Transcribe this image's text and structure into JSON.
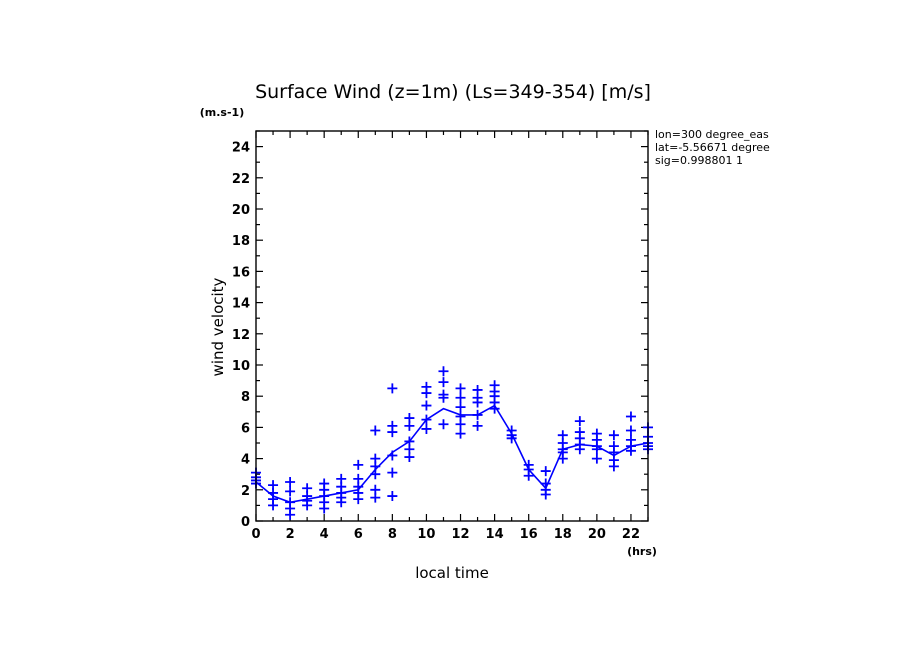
{
  "chart_data": {
    "type": "line",
    "title": "Surface Wind (z=1m) (Ls=349-354) [m/s]",
    "xlabel": "local time",
    "ylabel": "wind velocity",
    "x_unit": "(hrs)",
    "y_unit": "(m.s-1)",
    "xlim": [
      0,
      23
    ],
    "ylim": [
      0,
      25
    ],
    "x_ticks": [
      0,
      2,
      4,
      6,
      8,
      10,
      12,
      14,
      16,
      18,
      20,
      22
    ],
    "y_ticks": [
      0,
      2,
      4,
      6,
      8,
      10,
      12,
      14,
      16,
      18,
      20,
      22,
      24
    ],
    "grid": false,
    "info_lines": [
      "lon=300 degree_eas",
      "lat=-5.56671 degree",
      "sig=0.998801 1"
    ],
    "color": "#0000ff",
    "mean_line": {
      "x": [
        0,
        1,
        2,
        3,
        4,
        5,
        6,
        7,
        8,
        9,
        10,
        11,
        12,
        13,
        14,
        15,
        16,
        17,
        18,
        19,
        20,
        21,
        22,
        23
      ],
      "y": [
        2.5,
        1.6,
        1.2,
        1.4,
        1.6,
        1.8,
        2.0,
        3.3,
        4.4,
        5.1,
        6.5,
        7.2,
        6.8,
        6.8,
        7.4,
        5.6,
        3.3,
        2.1,
        4.6,
        4.9,
        4.8,
        4.2,
        4.8,
        5.0
      ]
    },
    "scatter": {
      "x": [
        0,
        0,
        0,
        0,
        1,
        1,
        1,
        1,
        2,
        2,
        2,
        2,
        2,
        3,
        3,
        3,
        3,
        4,
        4,
        4,
        4,
        4,
        5,
        5,
        5,
        5,
        5,
        6,
        6,
        6,
        6,
        6,
        7,
        7,
        7,
        7,
        7,
        7,
        8,
        8,
        8,
        8,
        8,
        8,
        9,
        9,
        9,
        9,
        9,
        10,
        10,
        10,
        10,
        10,
        11,
        11,
        11,
        11,
        11,
        12,
        12,
        12,
        12,
        12,
        12,
        13,
        13,
        13,
        13,
        13,
        14,
        14,
        14,
        14,
        14,
        15,
        15,
        15,
        16,
        16,
        16,
        17,
        17,
        17,
        17,
        18,
        18,
        18,
        18,
        18,
        19,
        19,
        19,
        19,
        19,
        20,
        20,
        20,
        20,
        20,
        21,
        21,
        21,
        21,
        21,
        22,
        22,
        22,
        22,
        22,
        23,
        23,
        23,
        23,
        23
      ],
      "y": [
        3.1,
        2.8,
        2.6,
        2.4,
        2.3,
        1.8,
        1.4,
        1.0,
        2.5,
        1.9,
        1.2,
        0.8,
        0.4,
        2.1,
        1.6,
        1.3,
        1.0,
        2.4,
        2.0,
        1.6,
        1.2,
        0.8,
        2.7,
        2.2,
        1.8,
        1.5,
        1.2,
        3.6,
        2.7,
        2.2,
        1.8,
        1.4,
        5.8,
        4.0,
        3.5,
        3.0,
        2.0,
        1.5,
        8.5,
        6.1,
        5.7,
        4.2,
        3.1,
        1.6,
        6.6,
        6.1,
        5.1,
        4.6,
        4.1,
        8.6,
        8.2,
        7.4,
        6.5,
        5.9,
        9.6,
        8.9,
        8.1,
        7.9,
        6.2,
        8.5,
        7.9,
        7.3,
        6.7,
        6.2,
        5.6,
        8.4,
        7.9,
        7.6,
        6.8,
        6.1,
        8.7,
        8.3,
        8.0,
        7.6,
        7.2,
        5.8,
        5.5,
        5.3,
        3.6,
        3.3,
        2.9,
        3.2,
        2.4,
        2.0,
        1.7,
        5.5,
        5.0,
        4.6,
        4.4,
        4.0,
        6.4,
        5.7,
        5.3,
        4.9,
        4.6,
        5.6,
        5.2,
        4.8,
        4.6,
        4.0,
        5.5,
        4.8,
        4.4,
        3.9,
        3.5,
        6.7,
        5.8,
        5.2,
        4.8,
        4.5,
        6.0,
        5.4,
        5.0,
        4.8,
        4.6
      ]
    }
  }
}
